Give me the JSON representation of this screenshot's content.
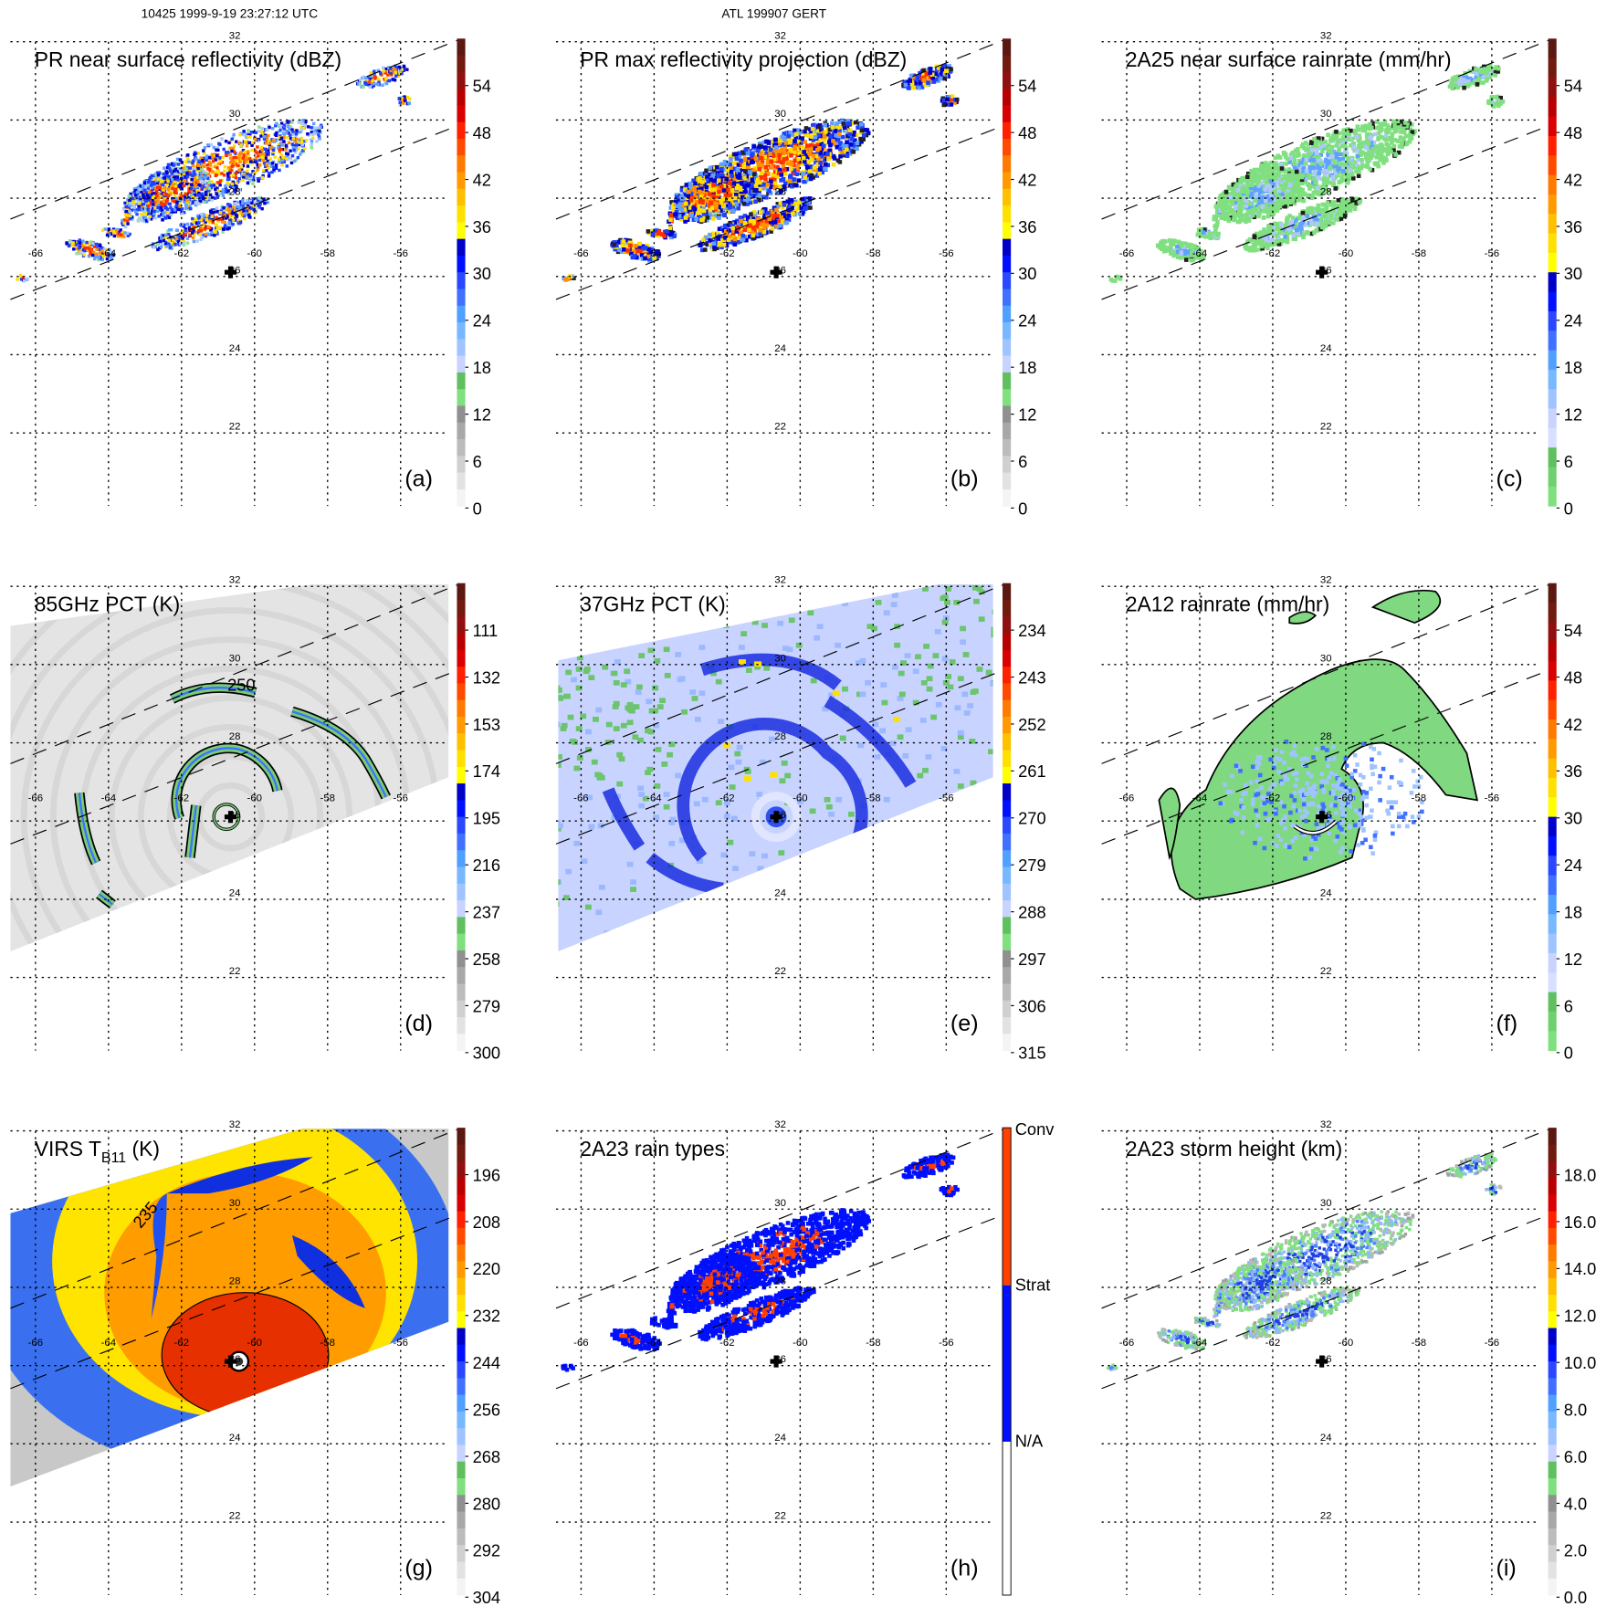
{
  "header": {
    "orbit_time": "10425 1999-9-19 23:27:12 UTC",
    "storm": "ATL 199907 GERT"
  },
  "map_labels": {
    "lon": [
      "-66",
      "-64",
      "-62",
      "-60",
      "-58",
      "-56"
    ],
    "lat": [
      "32",
      "30",
      "28",
      "26",
      "24",
      "22"
    ]
  },
  "palettes": {
    "standard": [
      "#5a1810",
      "#701a10",
      "#901010",
      "#b80000",
      "#d80000",
      "#ff2000",
      "#ff4a00",
      "#ff7a00",
      "#ff9a00",
      "#ffc000",
      "#ffe000",
      "#ffff00",
      "#0000c8",
      "#0010ff",
      "#2a48ff",
      "#4070ff",
      "#50a0ff",
      "#78b8ff",
      "#a0c4ff",
      "#c8d4ff",
      "#60c060",
      "#80e080",
      "#909090",
      "#a8a8a8",
      "#bcbcbc",
      "#d0d0d0",
      "#e2e2e2",
      "#f4f4f4"
    ],
    "rain": [
      "#5a1810",
      "#701a10",
      "#901010",
      "#b80000",
      "#d80000",
      "#ff2000",
      "#ff4a00",
      "#ff7a00",
      "#ff9a00",
      "#ffc000",
      "#ffe000",
      "#ffff00",
      "#0000c8",
      "#0010ff",
      "#2a48ff",
      "#4070ff",
      "#50a0ff",
      "#78b8ff",
      "#a0c4ff",
      "#c8d4ff",
      "#d8e0ff",
      "#60c060",
      "#70d070",
      "#80e080"
    ],
    "raintype": [
      "#ff4000",
      "#0010ff",
      "#ffffff"
    ]
  },
  "panels": [
    {
      "letter": "(a)",
      "title": "PR near surface reflectivity (dBZ)",
      "field": "pr_refl",
      "palette": "standard",
      "ticks": [
        "54",
        "48",
        "42",
        "36",
        "30",
        "24",
        "18",
        "12",
        "6",
        "0"
      ]
    },
    {
      "letter": "(b)",
      "title": "PR max reflectivity projection (dBZ)",
      "field": "pr_max",
      "palette": "standard",
      "ticks": [
        "54",
        "48",
        "42",
        "36",
        "30",
        "24",
        "18",
        "12",
        "6",
        "0"
      ]
    },
    {
      "letter": "(c)",
      "title": "2A25 near surface rainrate (mm/hr)",
      "field": "pr_rain",
      "palette": "rain",
      "ticks": [
        "54",
        "48",
        "42",
        "36",
        "30",
        "24",
        "18",
        "12",
        "6",
        "0"
      ]
    },
    {
      "letter": "(d)",
      "title": "85GHz PCT (K)",
      "field": "pct85",
      "palette": "standard",
      "ticks": [
        "111",
        "132",
        "153",
        "174",
        "195",
        "216",
        "237",
        "258",
        "279",
        "300"
      ],
      "contour_label": "250"
    },
    {
      "letter": "(e)",
      "title": "37GHz PCT (K)",
      "field": "pct37",
      "palette": "standard",
      "ticks": [
        "234",
        "243",
        "252",
        "261",
        "270",
        "279",
        "288",
        "297",
        "306",
        "315"
      ]
    },
    {
      "letter": "(f)",
      "title": "2A12 rainrate (mm/hr)",
      "field": "tmi_rain",
      "palette": "rain",
      "ticks": [
        "54",
        "48",
        "42",
        "36",
        "30",
        "24",
        "18",
        "12",
        "6",
        "0"
      ]
    },
    {
      "letter": "(g)",
      "title": "VIRS T",
      "title_sub": "B11",
      "title_tail": " (K)",
      "field": "virs",
      "palette": "standard",
      "ticks": [
        "196",
        "208",
        "220",
        "232",
        "244",
        "256",
        "268",
        "280",
        "292",
        "304"
      ],
      "contour_label": "235"
    },
    {
      "letter": "(h)",
      "title": "2A23 rain types",
      "field": "raintype",
      "palette": "raintype",
      "ticks": [
        "Conv",
        "Strat",
        "N/A"
      ]
    },
    {
      "letter": "(i)",
      "title": "2A23 storm height (km)",
      "field": "stormht",
      "palette": "standard",
      "ticks": [
        "18.0",
        "16.0",
        "14.0",
        "12.0",
        "10.0",
        "8.0",
        "6.0",
        "4.0",
        "2.0",
        "0.0"
      ]
    }
  ]
}
